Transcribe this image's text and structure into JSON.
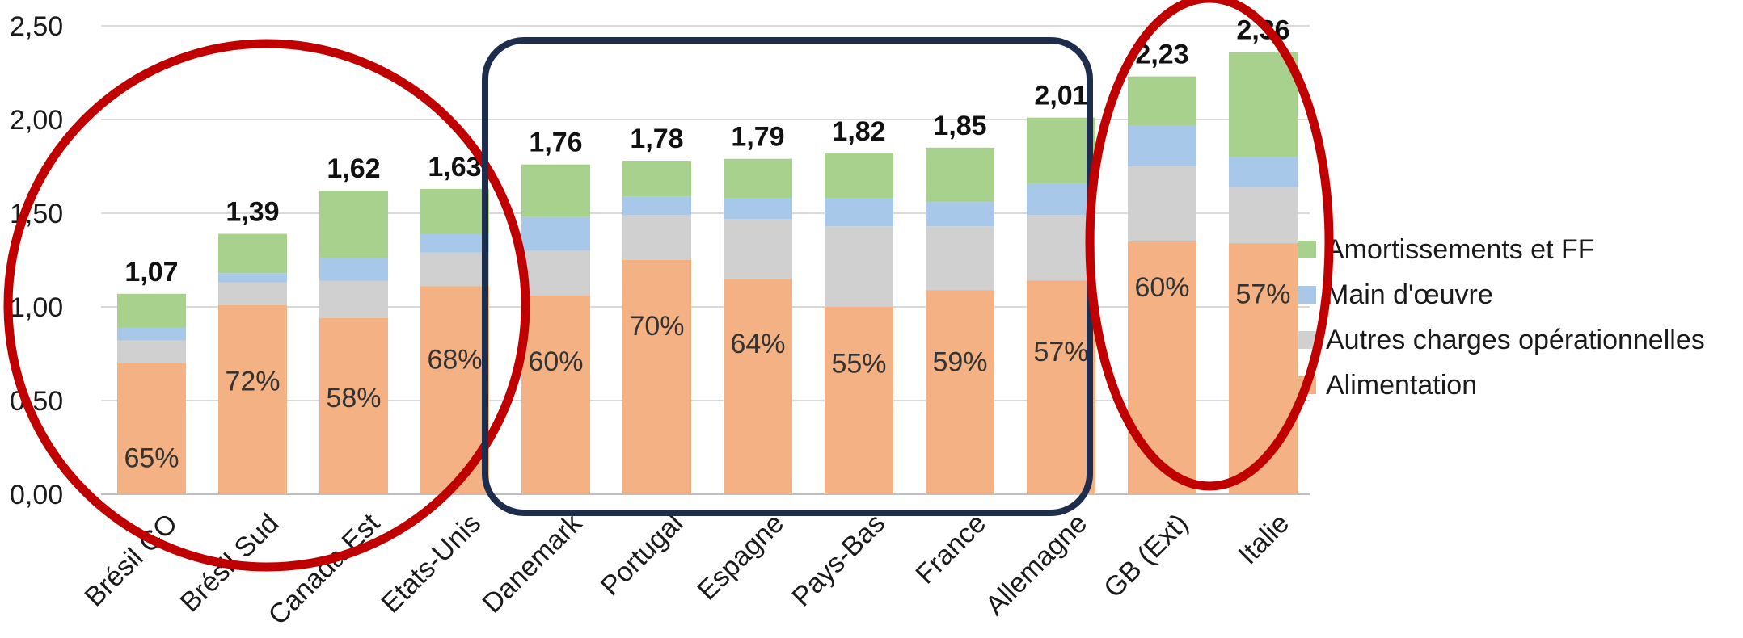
{
  "chart_data": {
    "type": "bar",
    "stacked": true,
    "categories": [
      "Brésil CO",
      "Brésil Sud",
      "Canada Est",
      "Etats-Unis",
      "Danemark",
      "Portugal",
      "Espagne",
      "Pays-Bas",
      "France",
      "Allemagne",
      "GB (Ext)",
      "Italie"
    ],
    "series": [
      {
        "name": "Alimentation",
        "color": "#f4b183",
        "values": [
          0.7,
          1.01,
          0.94,
          1.11,
          1.06,
          1.25,
          1.15,
          1.0,
          1.09,
          1.14,
          1.35,
          1.34
        ]
      },
      {
        "name": "Autres charges opérationnelles",
        "color": "#d0d0d0",
        "values": [
          0.12,
          0.12,
          0.2,
          0.18,
          0.24,
          0.24,
          0.32,
          0.43,
          0.34,
          0.35,
          0.4,
          0.3
        ]
      },
      {
        "name": "Main d'œuvre",
        "color": "#a8c8ea",
        "values": [
          0.07,
          0.05,
          0.12,
          0.1,
          0.18,
          0.1,
          0.11,
          0.15,
          0.13,
          0.17,
          0.22,
          0.16
        ]
      },
      {
        "name": "Amortissements et FF",
        "color": "#a9d18e",
        "values": [
          0.18,
          0.21,
          0.36,
          0.24,
          0.28,
          0.19,
          0.21,
          0.24,
          0.29,
          0.35,
          0.26,
          0.56
        ]
      }
    ],
    "totals": [
      "1,07",
      "1,39",
      "1,62",
      "1,63",
      "1,76",
      "1,78",
      "1,79",
      "1,82",
      "1,85",
      "2,01",
      "2,23",
      "2,36"
    ],
    "total_values": [
      1.07,
      1.39,
      1.62,
      1.63,
      1.76,
      1.78,
      1.79,
      1.82,
      1.85,
      2.01,
      2.23,
      2.36
    ],
    "share_labels": [
      "65%",
      "72%",
      "58%",
      "68%",
      "60%",
      "70%",
      "64%",
      "55%",
      "59%",
      "57%",
      "60%",
      "57%"
    ],
    "ylim": [
      0,
      2.5
    ],
    "yticks": [
      "0,00",
      "0,50",
      "1,00",
      "1,50",
      "2,00",
      "2,50"
    ],
    "ytick_values": [
      0,
      0.5,
      1.0,
      1.5,
      2.0,
      2.5
    ],
    "legend_position": "right",
    "gridlines": true,
    "annotations": [
      {
        "shape": "ellipse",
        "color": "#c00000",
        "covers": [
          "Brésil CO",
          "Brésil Sud",
          "Canada Est",
          "Etats-Unis"
        ]
      },
      {
        "shape": "rounded-rectangle",
        "color": "#1f2d4d",
        "covers": [
          "Danemark",
          "Portugal",
          "Espagne",
          "Pays-Bas",
          "France",
          "Allemagne"
        ]
      },
      {
        "shape": "ellipse",
        "color": "#c00000",
        "covers": [
          "GB (Ext)",
          "Italie"
        ]
      }
    ],
    "xlabel": "",
    "ylabel": "",
    "title": ""
  }
}
